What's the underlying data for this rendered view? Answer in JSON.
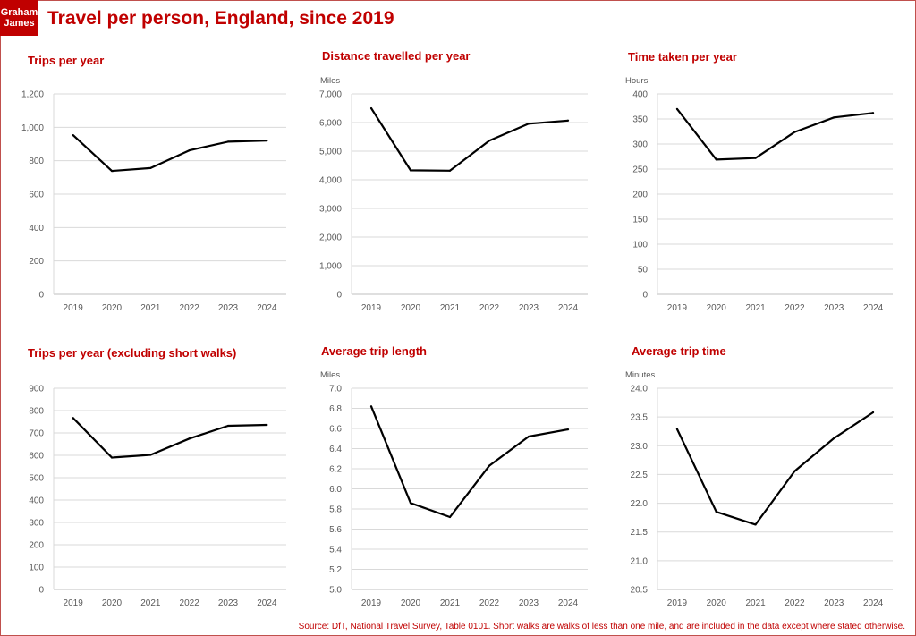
{
  "header": {
    "logo_line1": "Graham",
    "logo_line2": "James",
    "title": "Travel per person, England, since 2019"
  },
  "footer": {
    "source": "Source: DfT, National Travel Survey, Table 0101. Short walks are walks of less than one mile, and are included in the data except where stated otherwise."
  },
  "colors": {
    "accent": "#c00000",
    "line": "#000000",
    "grid": "#d9d9d9",
    "tick_text": "#595959"
  },
  "chart_data": [
    {
      "type": "line",
      "title": "Trips per year",
      "ylabel": "",
      "categories": [
        "2019",
        "2020",
        "2021",
        "2022",
        "2023",
        "2024"
      ],
      "values": [
        953,
        739,
        756,
        862,
        914,
        921
      ],
      "yticks": [
        "0",
        "200",
        "400",
        "600",
        "800",
        "1,000",
        "1,200"
      ],
      "ylim": [
        0,
        1200
      ],
      "grid": true
    },
    {
      "type": "line",
      "title": "Distance travelled per year",
      "ylabel": "Miles",
      "categories": [
        "2019",
        "2020",
        "2021",
        "2022",
        "2023",
        "2024"
      ],
      "values": [
        6500,
        4330,
        4320,
        5370,
        5960,
        6070
      ],
      "yticks": [
        "0",
        "1,000",
        "2,000",
        "3,000",
        "4,000",
        "5,000",
        "6,000",
        "7,000"
      ],
      "ylim": [
        0,
        7000
      ],
      "grid": true
    },
    {
      "type": "line",
      "title": "Time taken per year",
      "ylabel": "Hours",
      "categories": [
        "2019",
        "2020",
        "2021",
        "2022",
        "2023",
        "2024"
      ],
      "values": [
        370,
        269,
        272,
        324,
        353,
        362
      ],
      "yticks": [
        "0",
        "50",
        "100",
        "150",
        "200",
        "250",
        "300",
        "350",
        "400"
      ],
      "ylim": [
        0,
        400
      ],
      "grid": true
    },
    {
      "type": "line",
      "title": "Trips per year (excluding short walks)",
      "ylabel": "",
      "categories": [
        "2019",
        "2020",
        "2021",
        "2022",
        "2023",
        "2024"
      ],
      "values": [
        767,
        590,
        602,
        675,
        732,
        736
      ],
      "yticks": [
        "0",
        "100",
        "200",
        "300",
        "400",
        "500",
        "600",
        "700",
        "800",
        "900"
      ],
      "ylim": [
        0,
        900
      ],
      "grid": true
    },
    {
      "type": "line",
      "title": "Average trip length",
      "ylabel": "Miles",
      "categories": [
        "2019",
        "2020",
        "2021",
        "2022",
        "2023",
        "2024"
      ],
      "values": [
        6.82,
        5.86,
        5.72,
        6.23,
        6.52,
        6.59
      ],
      "yticks": [
        "5.0",
        "5.2",
        "5.4",
        "5.6",
        "5.8",
        "6.0",
        "6.2",
        "6.4",
        "6.6",
        "6.8",
        "7.0"
      ],
      "ylim": [
        5.0,
        7.0
      ],
      "grid": true
    },
    {
      "type": "line",
      "title": "Average trip time",
      "ylabel": "Minutes",
      "categories": [
        "2019",
        "2020",
        "2021",
        "2022",
        "2023",
        "2024"
      ],
      "values": [
        23.29,
        21.85,
        21.63,
        22.56,
        23.13,
        23.58
      ],
      "yticks": [
        "20.5",
        "21.0",
        "21.5",
        "22.0",
        "22.5",
        "23.0",
        "23.5",
        "24.0"
      ],
      "ylim": [
        20.5,
        24.0
      ],
      "grid": true
    }
  ]
}
